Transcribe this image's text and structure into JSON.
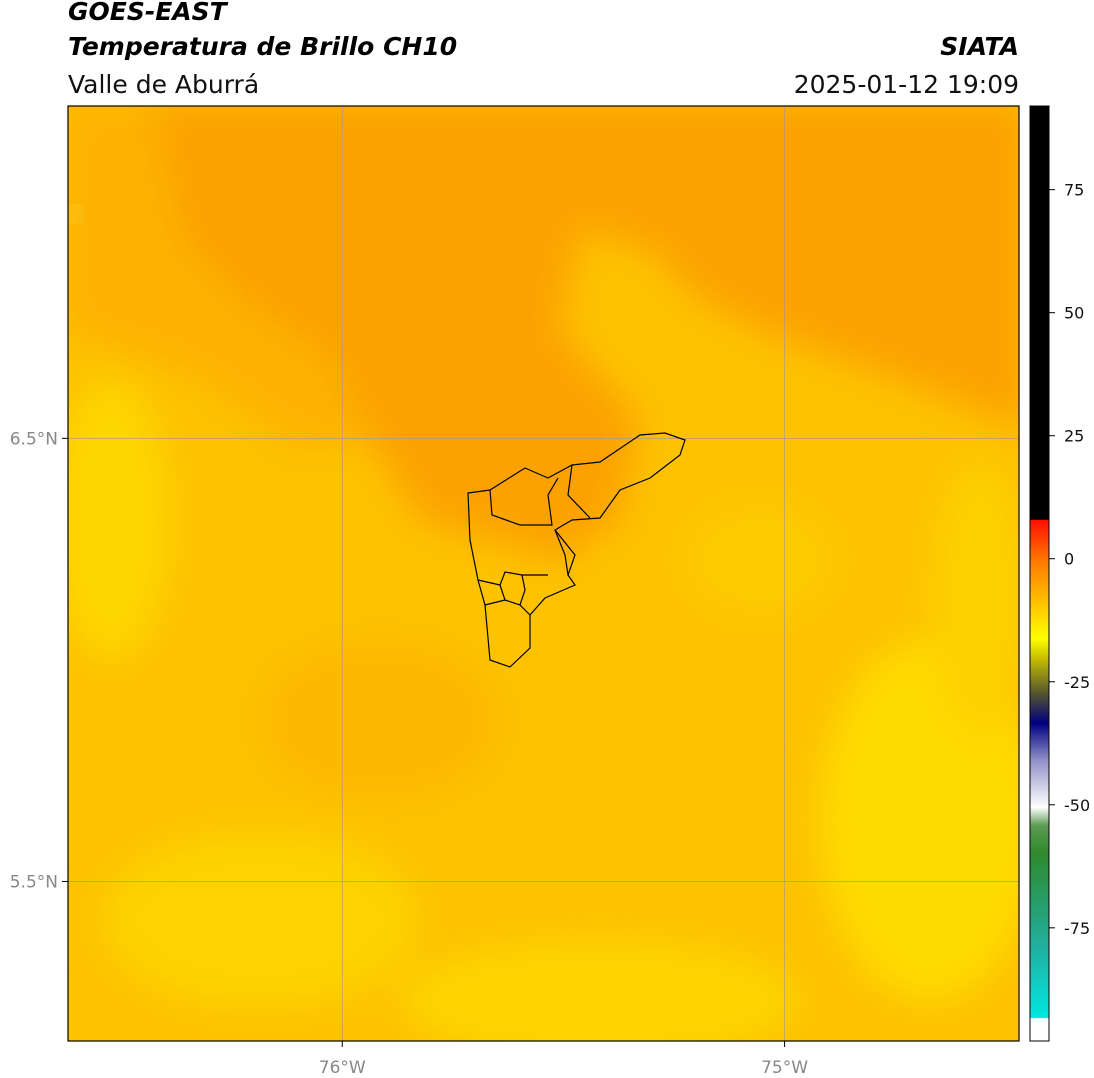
{
  "header": {
    "title": "GOES-EAST",
    "product": "Temperatura de Brillo CH10",
    "region": "Valle de Aburrá",
    "source": "SIATA",
    "timestamp": "2025-01-12 19:09"
  },
  "map": {
    "xlim": [
      -76.62,
      -74.47
    ],
    "ylim": [
      5.14,
      7.25
    ],
    "xticks": [
      {
        "value": -76,
        "label": "76°W"
      },
      {
        "value": -75,
        "label": "75°W"
      }
    ],
    "yticks": [
      {
        "value": 6.5,
        "label": "6.5°N"
      },
      {
        "value": 5.5,
        "label": "5.5°N"
      }
    ],
    "grid": true
  },
  "colorbar": {
    "lim": [
      -98,
      92
    ],
    "ticks": [
      75,
      50,
      25,
      0,
      -25,
      -50,
      -75
    ]
  }
}
